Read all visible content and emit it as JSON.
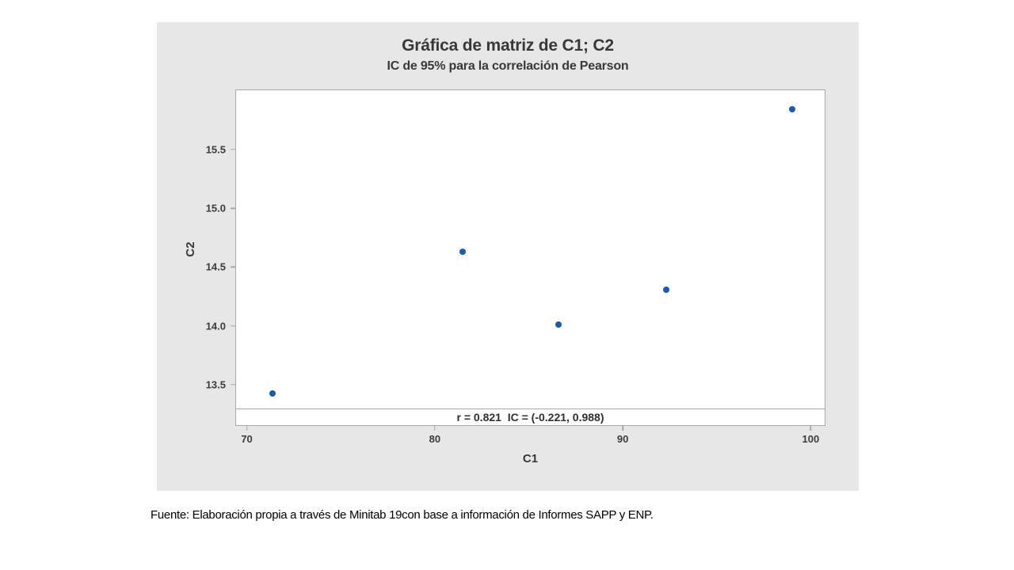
{
  "chart": {
    "title": "Gráfica de matriz de C1; C2",
    "subtitle": "IC de 95% para la correlación de Pearson",
    "xlabel": "C1",
    "ylabel": "C2",
    "stats_label": "r = 0.821  IC = (-0.221, 0.988)"
  },
  "chart_data": {
    "type": "scatter",
    "title": "Gráfica de matriz de C1; C2",
    "subtitle": "IC de 95% para la correlación de Pearson",
    "xlabel": "C1",
    "ylabel": "C2",
    "points": [
      {
        "x": 71.4,
        "y": 13.43
      },
      {
        "x": 81.5,
        "y": 14.63
      },
      {
        "x": 86.6,
        "y": 14.01
      },
      {
        "x": 92.3,
        "y": 14.31
      },
      {
        "x": 99.0,
        "y": 15.84
      }
    ],
    "x_ticks": [
      70,
      80,
      90,
      100
    ],
    "x_tick_labels": [
      "70",
      "80",
      "90",
      "100"
    ],
    "y_ticks": [
      13.5,
      14.0,
      14.5,
      15.0,
      15.5
    ],
    "y_tick_labels": [
      "13.5",
      "14.0",
      "14.5",
      "15.0",
      "15.5"
    ],
    "xlim": [
      69.45,
      100.72
    ],
    "ylim": [
      13.3,
      16.0
    ],
    "grid": false,
    "legend": null,
    "annotation": "r = 0.821  IC = (-0.221, 0.988)",
    "pearson_r": 0.821,
    "ci_95": [
      -0.221,
      0.988
    ],
    "marker_color": "#1d5ba6"
  },
  "colors": {
    "panel_background": "#e7e7e7",
    "plot_background": "#ffffff",
    "frame_border": "#a9a9a9",
    "marker": "#1d5ba6",
    "text": "#383838"
  },
  "footer": {
    "caption": "Fuente: Elaboración propia a través de Minitab 19con base a información de Informes SAPP y ENP."
  }
}
